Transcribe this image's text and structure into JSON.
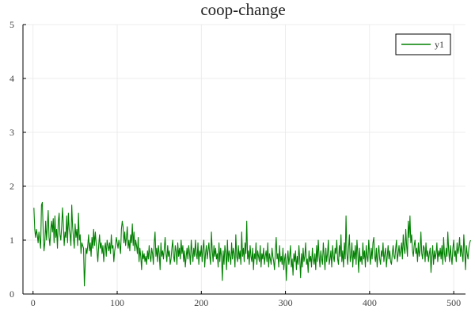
{
  "chart_data": {
    "type": "line",
    "title": "coop-change",
    "xlabel": "",
    "ylabel": "",
    "xlim": [
      -12,
      514
    ],
    "ylim": [
      0,
      5
    ],
    "x_ticks": [
      0,
      100,
      200,
      300,
      400,
      500
    ],
    "y_ticks": [
      0,
      1,
      2,
      3,
      4,
      5
    ],
    "grid": true,
    "legend_placement": "top-right",
    "series": [
      {
        "name": "y1",
        "color": "#008000",
        "x_start": 1,
        "x_step": 1,
        "values": [
          1.6,
          1.2,
          1.05,
          1.2,
          1.1,
          0.95,
          1.15,
          1.0,
          0.85,
          1.65,
          1.7,
          1.2,
          0.8,
          0.95,
          1.35,
          1.0,
          1.25,
          1.55,
          1.05,
          0.9,
          1.2,
          1.35,
          1.15,
          1.4,
          0.95,
          1.45,
          1.05,
          1.2,
          0.85,
          1.35,
          1.5,
          1.1,
          1.0,
          1.25,
          1.6,
          1.3,
          0.9,
          1.15,
          1.05,
          1.45,
          0.95,
          1.5,
          1.2,
          1.1,
          0.9,
          1.65,
          1.25,
          1.05,
          0.85,
          1.3,
          1.05,
          1.2,
          0.9,
          1.5,
          1.0,
          1.1,
          0.75,
          0.95,
          0.9,
          0.85,
          0.15,
          0.55,
          0.85,
          0.75,
          0.9,
          1.1,
          0.8,
          0.95,
          0.7,
          1.05,
          0.85,
          1.2,
          0.9,
          1.15,
          0.95,
          0.8,
          0.6,
          0.9,
          1.1,
          0.85,
          0.95,
          0.75,
          0.9,
          0.6,
          0.85,
          0.95,
          0.7,
          1.0,
          0.9,
          0.8,
          0.95,
          0.75,
          1.1,
          0.85,
          0.9,
          0.6,
          0.8,
          0.9,
          1.05,
          0.95,
          0.85,
          1.0,
          0.9,
          0.75,
          1.2,
          1.35,
          1.25,
          0.95,
          1.15,
          0.9,
          1.05,
          1.25,
          0.85,
          1.0,
          0.8,
          1.1,
          0.95,
          1.3,
          0.9,
          1.15,
          0.8,
          1.0,
          0.9,
          0.75,
          1.05,
          0.6,
          0.85,
          0.7,
          0.45,
          0.8,
          0.65,
          0.75,
          0.6,
          0.7,
          0.55,
          0.8,
          0.65,
          0.9,
          0.7,
          0.6,
          0.85,
          0.75,
          0.55,
          0.95,
          1.15,
          0.7,
          0.85,
          0.6,
          0.9,
          0.75,
          0.45,
          0.95,
          0.7,
          0.8,
          0.65,
          0.85,
          1.05,
          0.75,
          0.6,
          0.9,
          0.7,
          0.8,
          0.55,
          0.65,
          0.85,
          1.0,
          0.7,
          0.6,
          0.9,
          0.8,
          0.55,
          0.95,
          0.7,
          0.85,
          0.65,
          1.0,
          0.75,
          0.9,
          0.6,
          0.8,
          0.5,
          0.7,
          0.85,
          0.65,
          0.9,
          0.75,
          0.55,
          1.0,
          0.8,
          0.6,
          0.85,
          0.7,
          1.0,
          0.75,
          0.65,
          0.95,
          0.55,
          0.8,
          0.7,
          0.9,
          0.6,
          0.85,
          1.0,
          0.5,
          0.75,
          0.9,
          0.65,
          0.8,
          0.95,
          0.7,
          0.55,
          1.15,
          0.8,
          0.6,
          0.9,
          0.7,
          0.85,
          0.65,
          0.75,
          0.5,
          0.95,
          0.6,
          0.85,
          0.7,
          0.25,
          0.8,
          0.55,
          0.9,
          0.75,
          0.45,
          1.0,
          0.6,
          0.8,
          0.7,
          0.55,
          0.95,
          0.65,
          0.85,
          0.75,
          0.5,
          1.1,
          0.7,
          0.6,
          0.9,
          0.65,
          0.8,
          0.55,
          1.15,
          0.7,
          0.85,
          0.6,
          0.95,
          0.75,
          1.35,
          0.65,
          0.8,
          0.55,
          0.9,
          0.7,
          0.6,
          0.85,
          0.45,
          0.75,
          0.65,
          0.95,
          0.55,
          0.8,
          0.7,
          0.6,
          0.9,
          0.5,
          0.75,
          0.65,
          0.85,
          0.55,
          0.7,
          0.8,
          0.6,
          0.95,
          0.5,
          0.75,
          0.65,
          0.55,
          0.85,
          0.7,
          0.6,
          0.45,
          0.8,
          1.05,
          0.65,
          0.75,
          0.5,
          0.9,
          0.6,
          0.7,
          0.55,
          0.85,
          0.45,
          0.65,
          0.75,
          0.25,
          0.6,
          0.8,
          0.55,
          0.7,
          0.9,
          0.5,
          0.65,
          0.35,
          0.75,
          0.6,
          0.8,
          0.45,
          0.7,
          0.55,
          0.9,
          0.65,
          0.3,
          0.75,
          0.5,
          0.85,
          0.6,
          0.7,
          0.95,
          0.55,
          0.65,
          0.4,
          0.8,
          0.6,
          0.7,
          0.5,
          0.85,
          0.65,
          0.55,
          0.75,
          0.45,
          0.9,
          0.6,
          1.0,
          0.7,
          0.5,
          0.8,
          0.65,
          0.55,
          0.95,
          0.7,
          0.45,
          0.85,
          0.6,
          0.75,
          1.0,
          0.55,
          0.65,
          0.8,
          0.5,
          0.9,
          0.7,
          0.6,
          0.85,
          0.75,
          1.0,
          0.65,
          0.55,
          0.9,
          0.7,
          1.1,
          0.6,
          0.8,
          0.5,
          0.95,
          0.65,
          1.45,
          0.75,
          0.55,
          0.85,
          1.1,
          0.6,
          0.7,
          0.95,
          0.5,
          0.8,
          0.65,
          0.9,
          0.55,
          1.0,
          0.75,
          0.4,
          0.85,
          0.6,
          0.7,
          0.55,
          0.95,
          0.65,
          0.8,
          0.5,
          0.9,
          0.7,
          0.6,
          1.0,
          0.75,
          0.55,
          0.85,
          0.65,
          0.95,
          1.05,
          0.7,
          0.6,
          0.85,
          0.5,
          0.75,
          0.9,
          0.65,
          0.55,
          0.8,
          0.7,
          0.95,
          0.6,
          0.75,
          0.85,
          0.5,
          0.7,
          0.9,
          0.65,
          0.8,
          0.6,
          0.55,
          0.75,
          0.9,
          0.7,
          0.65,
          0.85,
          1.0,
          0.6,
          0.75,
          0.9,
          0.7,
          0.8,
          0.95,
          0.65,
          1.1,
          0.85,
          0.75,
          1.2,
          0.9,
          0.7,
          1.35,
          1.05,
          1.45,
          0.95,
          1.1,
          0.8,
          0.7,
          0.9,
          1.0,
          0.75,
          0.85,
          0.6,
          0.95,
          0.7,
          0.8,
          1.15,
          0.75,
          0.65,
          0.9,
          0.85,
          0.6,
          0.95,
          0.7,
          0.8,
          0.6,
          0.75,
          0.85,
          0.4,
          0.7,
          0.9,
          0.55,
          0.8,
          0.65,
          0.75,
          0.95,
          0.6,
          0.8,
          0.7,
          0.85,
          0.65,
          0.9,
          0.55,
          1.05,
          0.75,
          0.6,
          0.85,
          0.7,
          1.15,
          0.8,
          0.6,
          0.9,
          0.7,
          0.55,
          0.85,
          1.0,
          0.7,
          0.8,
          0.6,
          0.95,
          0.75,
          0.85,
          1.05,
          0.7,
          0.9,
          0.75,
          0.6,
          1.1,
          0.8,
          0.45,
          0.9,
          0.75,
          0.65,
          0.85,
          0.95,
          1.0
        ]
      }
    ]
  }
}
